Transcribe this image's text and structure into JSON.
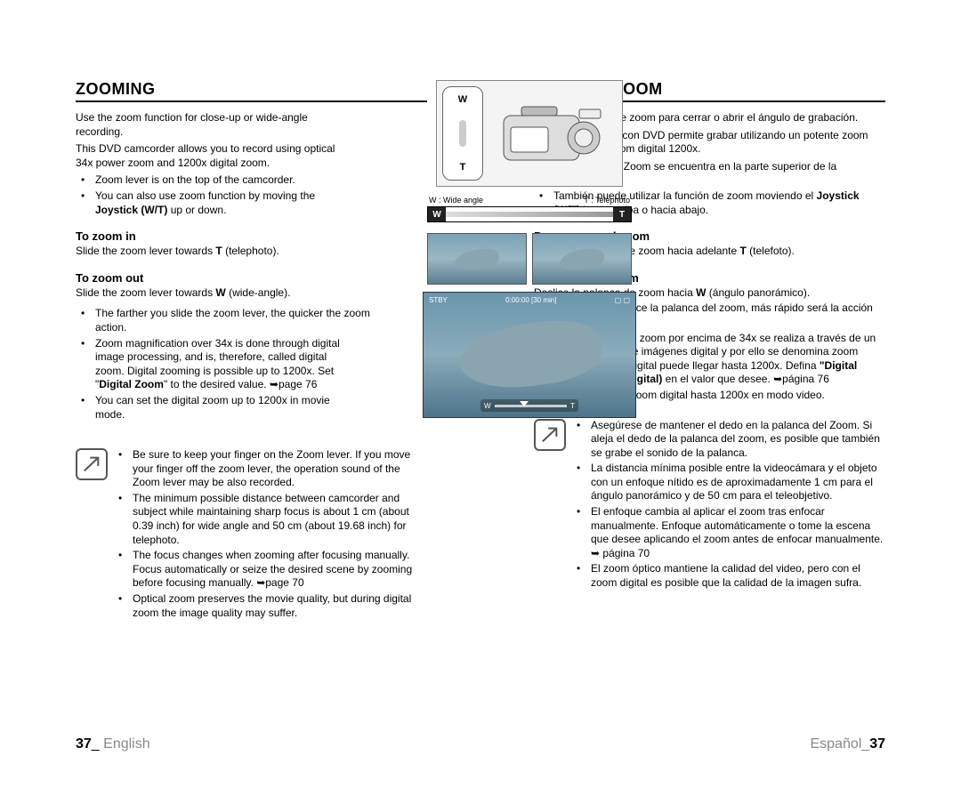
{
  "left": {
    "title": "ZOOMING",
    "intro1": "Use the zoom function for close-up or wide-angle recording.",
    "intro2": "This DVD camcorder allows you to record using optical 34x power zoom and 1200x digital zoom.",
    "bullets1": [
      "Zoom lever is on the top of the camcorder.",
      "You can also use zoom function by moving the <b>Joystick (W/T)</b> up or down."
    ],
    "zoomin_h": "To zoom in",
    "zoomin_t": "Slide the zoom lever towards <b>T</b> (telephoto).",
    "zoomout_h": "To zoom out",
    "zoomout_t": "Slide the zoom lever towards <b>W</b> (wide-angle).",
    "bullets2": [
      "The farther you slide the zoom lever, the quicker the zoom action.",
      "Zoom magnification over 34x is done through digital image processing, and is, therefore, called digital zoom. Digital zooming is possible up to 1200x. Set \"<b>Digital Zoom</b>\" to the desired value. ➥page 76",
      "You can set the digital zoom up to 1200x  in movie mode."
    ],
    "notes": [
      "Be sure to keep your finger on the Zoom lever. If you move your finger off the zoom lever, the operation sound of the Zoom lever may be also recorded.",
      "The minimum possible distance between camcorder and subject while maintaining sharp focus is about 1 cm (about 0.39 inch) for wide angle and 50 cm (about 19.68 inch) for telephoto.",
      "The focus changes when zooming after focusing manually. Focus automatically or seize the desired scene by zooming before focusing manually. ➥page 70",
      "Optical zoom preserves the movie quality, but during digital zoom the image quality may suffer."
    ],
    "footer_page": "37",
    "footer_sep": "_ ",
    "footer_lang": "English"
  },
  "right": {
    "title": "USO DEL ZOOM",
    "intro1": "Utilice la función de zoom para cerrar o abrir el ángulo de grabación.",
    "intro2": "Esta videocámara con DVD permite grabar utilizando un potente zoom óptico 34x y un zoom digital 1200x.",
    "bullets1": [
      "La palanca de Zoom se encuentra en la parte superior de la videocámara.",
      "También puede utilizar la función de zoom moviendo el <b>Joystick (W/T)</b> hacia arriba o hacia abajo."
    ],
    "zoomin_h": "Para acercar el zoom",
    "zoomin_t": "Deslice la palanca de zoom hacia adelante <b>T</b> (telefoto).",
    "zoomout_h": "Para alejar el zoom",
    "zoomout_t": "Deslice la palanca de zoom hacia <b>W</b> (ángulo panorámico).",
    "bullets2": [
      "Cuanto más deslice la palanca del zoom, más rápido será la acción de zoom.",
      "La ampliación del zoom por encima de 34x se realiza a través de un procesamiento de imágenes digital y por ello se denomina zoom digital. El zoom digital puede llegar hasta 1200x. Defina <b>\"Digital Zoom\" (Zoom Digital)</b> en el valor que desee. ➥página 76",
      "Puede definir el zoom digital hasta 1200x en modo video."
    ],
    "notes": [
      "Asegúrese de mantener el dedo en la palanca del Zoom. Si aleja el dedo de la palanca del zoom, es posible que también se grabe el sonido de la palanca.",
      "La distancia mínima posible entre la videocámara y el objeto con un enfoque nítido es de aproximadamente 1 cm para el ángulo panorámico y de 50 cm para el teleobjetivo.",
      "El enfoque cambia al aplicar el zoom tras enfocar manualmente. Enfoque automáticamente o tome la escena que desee aplicando el zoom antes de enfocar manualmente. ➥ página 70",
      "El zoom óptico mantiene la calidad del video, pero con el zoom digital es posible que la calidad de la imagen sufra."
    ],
    "footer_lang": "Español",
    "footer_sep": "_",
    "footer_page": "37"
  },
  "ill": {
    "w": "W",
    "t": "T",
    "wide_label": "W : Wide angle",
    "tele_label": "T : Telephoto",
    "osd_left": "STBY",
    "osd_mid": "0:00:00 [30 min]",
    "osd_w": "W",
    "osd_t": "T"
  }
}
